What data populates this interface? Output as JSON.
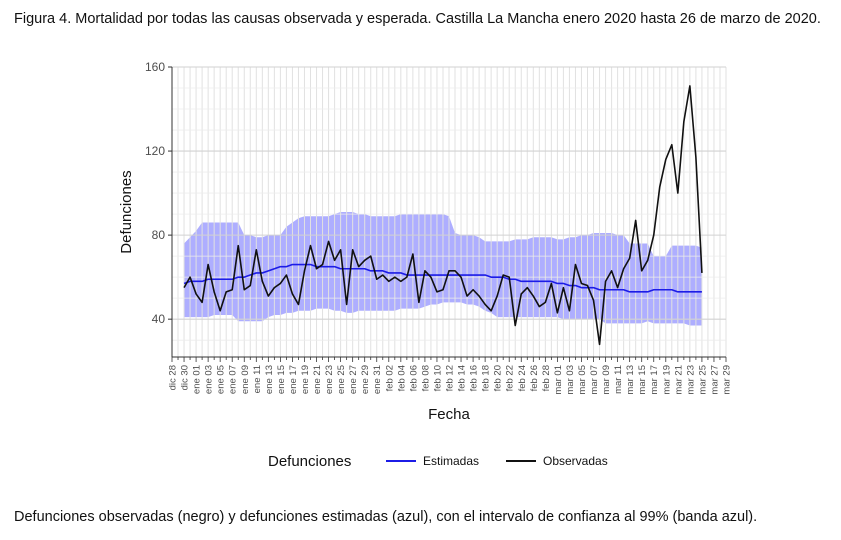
{
  "figure_title": "Figura 4. Mortalidad por todas las causas observada y esperada. Castilla La Mancha enero 2020 hasta 26 de marzo de 2020.",
  "footnote": "Defunciones observadas (negro) y defunciones estimadas (azul), con el intervalo de confianza al 99% (banda azul).",
  "colors": {
    "band": "#aaaaff",
    "estimated": "#1c1ce6",
    "observed": "#111111",
    "grid": "#e1e1e1"
  },
  "chart_data": {
    "type": "line",
    "title": "",
    "xlabel": "Fecha",
    "ylabel": "Defunciones",
    "ylim": [
      22,
      160
    ],
    "yticks": [
      40,
      80,
      120,
      160
    ],
    "grid": true,
    "x_ticks": [
      "dic 28",
      "dic 30",
      "ene 01",
      "ene 03",
      "ene 05",
      "ene 07",
      "ene 09",
      "ene 11",
      "ene 13",
      "ene 15",
      "ene 17",
      "ene 19",
      "ene 21",
      "ene 23",
      "ene 25",
      "ene 27",
      "ene 29",
      "ene 31",
      "feb 02",
      "feb 04",
      "feb 06",
      "feb 08",
      "feb 10",
      "feb 12",
      "feb 14",
      "feb 16",
      "feb 18",
      "feb 20",
      "feb 22",
      "feb 24",
      "feb 26",
      "feb 28",
      "mar 01",
      "mar 03",
      "mar 05",
      "mar 07",
      "mar 09",
      "mar 11",
      "mar 13",
      "mar 15",
      "mar 17",
      "mar 19",
      "mar 21",
      "mar 23",
      "mar 25",
      "mar 27",
      "mar 29"
    ],
    "x_tick_spacing_days": 2,
    "data_start_label": "dic 30",
    "data_start_day_offset": 2,
    "legend": {
      "title": "Defunciones",
      "position": "bottom",
      "entries": [
        {
          "name": "Estimadas",
          "color": "#1c1ce6"
        },
        {
          "name": "Observadas",
          "color": "#111111"
        }
      ]
    },
    "series": [
      {
        "name": "Observadas",
        "values": [
          55,
          60,
          52,
          48,
          66,
          53,
          44,
          53,
          54,
          75,
          54,
          56,
          73,
          58,
          51,
          55,
          57,
          61,
          52,
          47,
          63,
          75,
          64,
          66,
          77,
          68,
          73,
          47,
          73,
          65,
          68,
          70,
          59,
          61,
          58,
          60,
          58,
          60,
          71,
          48,
          63,
          60,
          53,
          54,
          63,
          63,
          60,
          51,
          54,
          51,
          47,
          44,
          51,
          61,
          60,
          37,
          52,
          55,
          51,
          46,
          48,
          57,
          43,
          55,
          44,
          66,
          57,
          56,
          49,
          28,
          58,
          63,
          55,
          64,
          69,
          87,
          63,
          68,
          80,
          103,
          116,
          123,
          100,
          134,
          151,
          117,
          62
        ]
      },
      {
        "name": "Estimadas",
        "values": [
          57,
          58,
          58,
          58,
          59,
          59,
          59,
          59,
          59,
          60,
          60,
          61,
          62,
          62,
          63,
          64,
          65,
          65,
          66,
          66,
          66,
          66,
          65,
          65,
          65,
          65,
          64,
          64,
          64,
          64,
          64,
          63,
          63,
          63,
          62,
          62,
          62,
          61,
          61,
          61,
          61,
          61,
          61,
          61,
          61,
          61,
          61,
          61,
          61,
          61,
          61,
          60,
          60,
          60,
          59,
          59,
          58,
          58,
          58,
          58,
          58,
          58,
          57,
          57,
          56,
          56,
          55,
          55,
          55,
          54,
          54,
          54,
          54,
          54,
          53,
          53,
          53,
          53,
          54,
          54,
          54,
          54,
          53,
          53,
          53,
          53,
          53
        ]
      },
      {
        "name": "Banda IC 99% superior",
        "values": [
          76,
          79,
          82,
          86,
          86,
          86,
          86,
          86,
          86,
          86,
          80,
          80,
          79,
          79,
          80,
          80,
          80,
          84,
          86,
          88,
          89,
          89,
          89,
          89,
          89,
          90,
          91,
          91,
          91,
          90,
          90,
          89,
          89,
          89,
          89,
          89,
          90,
          90,
          90,
          90,
          90,
          90,
          90,
          90,
          89,
          81,
          80,
          80,
          80,
          79,
          77,
          77,
          77,
          77,
          77,
          78,
          78,
          78,
          79,
          79,
          79,
          79,
          78,
          78,
          79,
          79,
          80,
          80,
          81,
          81,
          81,
          81,
          80,
          80,
          76,
          76,
          76,
          76,
          70,
          70,
          70,
          75,
          75,
          75,
          75,
          75,
          74
        ]
      },
      {
        "name": "Banda IC 99% inferior",
        "values": [
          41,
          41,
          41,
          41,
          41,
          42,
          42,
          42,
          42,
          39,
          39,
          39,
          39,
          39,
          41,
          42,
          42,
          43,
          43,
          44,
          44,
          44,
          45,
          45,
          45,
          44,
          44,
          43,
          43,
          44,
          44,
          44,
          44,
          44,
          44,
          44,
          45,
          45,
          45,
          45,
          46,
          47,
          47,
          48,
          48,
          48,
          48,
          47,
          47,
          46,
          44,
          43,
          41,
          41,
          41,
          41,
          41,
          41,
          41,
          41,
          41,
          41,
          41,
          40,
          40,
          40,
          40,
          40,
          40,
          40,
          38,
          38,
          38,
          38,
          38,
          38,
          38,
          39,
          38,
          38,
          38,
          38,
          38,
          38,
          37,
          37,
          37
        ]
      }
    ]
  }
}
